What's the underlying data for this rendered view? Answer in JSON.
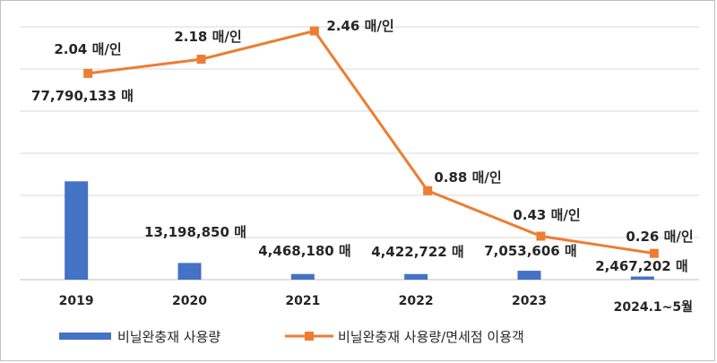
{
  "chart_data": {
    "type": "bar+line",
    "categories": [
      "2019",
      "2020",
      "2021",
      "2022",
      "2023",
      "2024.1~5월"
    ],
    "series": [
      {
        "name": "비닐완충재 사용량",
        "type": "bar",
        "axis": "left",
        "values": [
          77790133,
          13198850,
          4468180,
          4422722,
          7053606,
          2467202
        ],
        "labels": [
          "77,790,133 매",
          "13,198,850 매",
          "4,468,180 매",
          "4,422,722 매",
          "7,053,606 매",
          "2,467,202 매"
        ],
        "color": "#4472c4"
      },
      {
        "name": "비닐완충재 사용량/면세점 이용객",
        "type": "line",
        "axis": "right",
        "values": [
          2.04,
          2.18,
          2.46,
          0.88,
          0.43,
          0.26
        ],
        "labels": [
          "2.04 매/인",
          "2.18 매/인",
          "2.46 매/인",
          "0.88 매/인",
          "0.43 매/인",
          "0.26  매/인"
        ],
        "color": "#ed7d31"
      }
    ],
    "ylim_left": [
      0,
      200000000
    ],
    "ylim_right": [
      0,
      2.5
    ],
    "grid": true,
    "legend_position": "bottom-left"
  }
}
